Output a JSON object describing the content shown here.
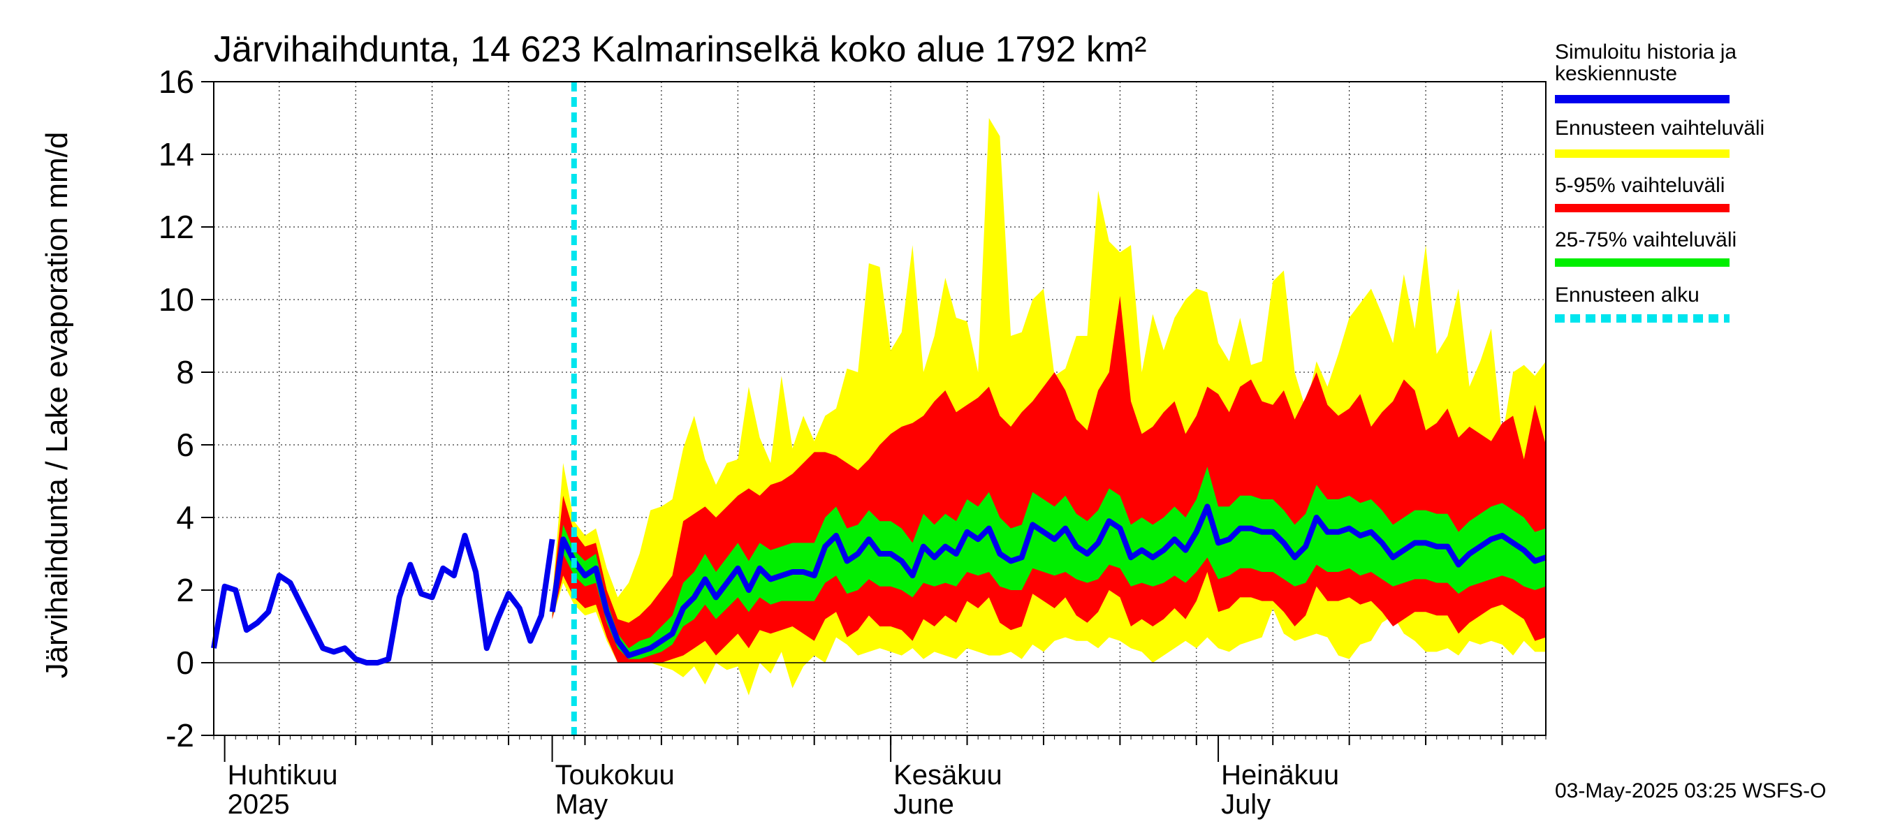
{
  "chart_data": {
    "type": "area",
    "title": "Järvihaihdunta, 14 623 Kalmarinselkä koko alue 1792 km²",
    "ylabel": "Järvihaihdunta / Lake evaporation   mm/d",
    "ylim": [
      -2,
      16
    ],
    "yticks": [
      -2,
      0,
      2,
      4,
      6,
      8,
      10,
      12,
      14,
      16
    ],
    "x_range": [
      "2025-03-31",
      "2025-07-31"
    ],
    "forecast_start": "2025-05-03",
    "months": [
      {
        "date": "2025-04-01",
        "fi": "Huhtikuu",
        "en": "2025"
      },
      {
        "date": "2025-05-01",
        "fi": "Toukokuu",
        "en": "May"
      },
      {
        "date": "2025-06-01",
        "fi": "Kesäkuu",
        "en": "June"
      },
      {
        "date": "2025-07-01",
        "fi": "Heinäkuu",
        "en": "July"
      }
    ],
    "footer": "03-May-2025 03:25 WSFS-O",
    "colors": {
      "history": "#0000ee",
      "yellow": "#ffff00",
      "red": "#ff0000",
      "green": "#00ee00",
      "forecast_start": "#00e5ee"
    },
    "legend": [
      {
        "label": "Simuloitu historia ja keskiennuste",
        "color": "#0000ee",
        "style": "solid"
      },
      {
        "label": "Ennusteen vaihteluväli",
        "color": "#ffff00",
        "style": "solid"
      },
      {
        "label": "5-95% vaihteluväli",
        "color": "#ff0000",
        "style": "solid"
      },
      {
        "label": "25-75% vaihteluväli",
        "color": "#00ee00",
        "style": "solid"
      },
      {
        "label": "Ennusteen alku",
        "color": "#00e5ee",
        "style": "dashed"
      }
    ],
    "history": {
      "start": "2025-03-31",
      "values": [
        0.4,
        2.1,
        2.0,
        0.9,
        1.1,
        1.4,
        2.4,
        2.2,
        1.6,
        1.0,
        0.4,
        0.3,
        0.4,
        0.1,
        0.0,
        0.0,
        0.1,
        1.8,
        2.7,
        1.9,
        1.8,
        2.6,
        2.4,
        3.5,
        2.5,
        0.4,
        1.2,
        1.9,
        1.5,
        0.6,
        1.3,
        3.4
      ]
    },
    "forecast": {
      "start": "2025-05-01",
      "median": [
        1.4,
        3.4,
        2.8,
        2.4,
        2.6,
        1.4,
        0.6,
        0.2,
        0.3,
        0.4,
        0.6,
        0.8,
        1.5,
        1.8,
        2.3,
        1.8,
        2.2,
        2.6,
        2.0,
        2.6,
        2.3,
        2.4,
        2.5,
        2.5,
        2.4,
        3.2,
        3.5,
        2.8,
        3.0,
        3.4,
        3.0,
        3.0,
        2.8,
        2.4,
        3.2,
        2.9,
        3.2,
        3.0,
        3.6,
        3.4,
        3.7,
        3.0,
        2.8,
        2.9,
        3.8,
        3.6,
        3.4,
        3.7,
        3.2,
        3.0,
        3.3,
        3.9,
        3.7,
        2.9,
        3.1,
        2.9,
        3.1,
        3.4,
        3.1,
        3.6,
        4.3,
        3.3,
        3.4,
        3.7,
        3.7,
        3.6,
        3.6,
        3.3,
        2.9,
        3.2,
        4.0,
        3.6,
        3.6,
        3.7,
        3.5,
        3.6,
        3.3,
        2.9,
        3.1,
        3.3,
        3.3,
        3.2,
        3.2,
        2.7,
        3.0,
        3.2,
        3.4,
        3.5,
        3.3,
        3.1,
        2.8,
        2.9
      ],
      "p25": [
        1.3,
        3.0,
        2.4,
        2.1,
        2.2,
        1.1,
        0.4,
        0.1,
        0.1,
        0.2,
        0.3,
        0.5,
        1.0,
        1.2,
        1.6,
        1.2,
        1.5,
        1.8,
        1.4,
        1.8,
        1.6,
        1.7,
        1.7,
        1.7,
        1.7,
        2.2,
        2.4,
        1.9,
        2.0,
        2.3,
        2.1,
        2.1,
        2.0,
        1.8,
        2.2,
        2.1,
        2.2,
        2.1,
        2.5,
        2.4,
        2.5,
        2.1,
        2.0,
        2.0,
        2.6,
        2.5,
        2.4,
        2.5,
        2.3,
        2.2,
        2.3,
        2.7,
        2.6,
        2.1,
        2.2,
        2.1,
        2.2,
        2.4,
        2.2,
        2.5,
        2.9,
        2.3,
        2.4,
        2.6,
        2.6,
        2.5,
        2.5,
        2.3,
        2.1,
        2.2,
        2.7,
        2.5,
        2.5,
        2.6,
        2.4,
        2.5,
        2.3,
        2.1,
        2.2,
        2.3,
        2.3,
        2.2,
        2.2,
        1.9,
        2.1,
        2.2,
        2.3,
        2.4,
        2.3,
        2.1,
        2.0,
        2.1
      ],
      "p75": [
        1.6,
        3.8,
        3.1,
        2.8,
        3.0,
        1.7,
        0.8,
        0.4,
        0.6,
        0.7,
        1.0,
        1.3,
        2.2,
        2.5,
        3.0,
        2.5,
        2.9,
        3.3,
        2.8,
        3.3,
        3.1,
        3.2,
        3.3,
        3.3,
        3.3,
        4.0,
        4.3,
        3.7,
        3.8,
        4.2,
        3.9,
        3.9,
        3.7,
        3.3,
        4.1,
        3.8,
        4.1,
        3.9,
        4.5,
        4.3,
        4.7,
        4.0,
        3.7,
        3.8,
        4.7,
        4.5,
        4.3,
        4.6,
        4.1,
        3.9,
        4.2,
        4.8,
        4.6,
        3.8,
        4.0,
        3.8,
        4.0,
        4.3,
        4.0,
        4.5,
        5.4,
        4.3,
        4.3,
        4.6,
        4.6,
        4.5,
        4.5,
        4.2,
        3.8,
        4.1,
        4.9,
        4.5,
        4.5,
        4.6,
        4.4,
        4.5,
        4.2,
        3.8,
        4.0,
        4.2,
        4.2,
        4.1,
        4.1,
        3.6,
        3.9,
        4.1,
        4.3,
        4.4,
        4.2,
        4.0,
        3.6,
        3.7
      ],
      "p05": [
        1.2,
        2.4,
        1.8,
        1.5,
        1.6,
        0.7,
        0.0,
        0.0,
        0.0,
        0.0,
        0.0,
        0.1,
        0.2,
        0.4,
        0.6,
        0.2,
        0.5,
        0.8,
        0.4,
        0.9,
        0.8,
        0.9,
        1.0,
        0.8,
        0.6,
        1.2,
        1.4,
        0.7,
        0.9,
        1.3,
        1.0,
        1.0,
        0.9,
        0.6,
        1.2,
        1.0,
        1.3,
        1.1,
        1.7,
        1.5,
        1.8,
        1.1,
        0.9,
        1.0,
        1.9,
        1.7,
        1.5,
        1.8,
        1.3,
        1.1,
        1.4,
        2.0,
        1.8,
        1.0,
        1.2,
        1.0,
        1.2,
        1.5,
        1.2,
        1.7,
        2.5,
        1.4,
        1.5,
        1.8,
        1.8,
        1.7,
        1.7,
        1.4,
        1.0,
        1.3,
        2.1,
        1.7,
        1.7,
        1.8,
        1.6,
        1.7,
        1.4,
        1.0,
        1.2,
        1.4,
        1.4,
        1.3,
        1.3,
        0.8,
        1.1,
        1.3,
        1.5,
        1.6,
        1.4,
        1.2,
        0.6,
        0.7
      ],
      "p95": [
        1.8,
        4.6,
        3.6,
        3.2,
        3.3,
        2.0,
        1.2,
        1.1,
        1.3,
        1.6,
        2.0,
        2.4,
        3.9,
        4.1,
        4.3,
        4.0,
        4.3,
        4.6,
        4.8,
        4.6,
        4.9,
        5.0,
        5.2,
        5.5,
        5.8,
        5.8,
        5.7,
        5.5,
        5.3,
        5.6,
        6.0,
        6.3,
        6.5,
        6.6,
        6.8,
        7.2,
        7.5,
        6.9,
        7.1,
        7.3,
        7.6,
        6.8,
        6.5,
        6.9,
        7.2,
        7.6,
        8.0,
        7.5,
        6.7,
        6.4,
        7.5,
        8.0,
        10.1,
        7.2,
        6.3,
        6.5,
        6.9,
        7.2,
        6.3,
        6.8,
        7.6,
        7.4,
        6.9,
        7.6,
        7.8,
        7.2,
        7.1,
        7.5,
        6.7,
        7.3,
        8.0,
        7.1,
        6.8,
        7.0,
        7.4,
        6.5,
        6.9,
        7.2,
        7.8,
        7.5,
        6.4,
        6.6,
        7.0,
        6.2,
        6.5,
        6.3,
        6.1,
        6.6,
        6.8,
        5.6,
        7.1,
        6.0
      ],
      "ymin": [
        1.2,
        2.2,
        1.6,
        1.3,
        1.4,
        0.6,
        0.0,
        0.0,
        0.0,
        0.0,
        -0.1,
        -0.2,
        -0.4,
        -0.1,
        -0.6,
        0.0,
        -0.2,
        -0.1,
        -0.9,
        0.0,
        -0.3,
        0.3,
        -0.7,
        -0.1,
        0.2,
        0.0,
        0.7,
        0.5,
        0.2,
        0.3,
        0.4,
        0.3,
        0.2,
        0.4,
        0.1,
        0.3,
        0.2,
        0.1,
        0.4,
        0.3,
        0.2,
        0.2,
        0.3,
        0.1,
        0.5,
        0.3,
        0.6,
        0.7,
        0.6,
        0.6,
        0.4,
        0.7,
        0.6,
        0.4,
        0.3,
        0.0,
        0.2,
        0.4,
        0.6,
        0.4,
        0.7,
        0.4,
        0.3,
        0.5,
        0.6,
        0.7,
        1.5,
        0.8,
        0.6,
        0.7,
        0.8,
        0.7,
        0.2,
        0.1,
        0.5,
        0.6,
        1.1,
        1.3,
        0.8,
        0.6,
        0.3,
        0.3,
        0.4,
        0.2,
        0.6,
        0.5,
        0.6,
        0.5,
        0.2,
        0.6,
        0.3,
        0.3
      ],
      "ymax": [
        1.8,
        5.5,
        3.9,
        3.5,
        3.7,
        2.6,
        1.8,
        2.2,
        3.0,
        4.2,
        4.3,
        4.5,
        5.9,
        6.8,
        5.6,
        4.9,
        5.5,
        5.6,
        7.6,
        6.2,
        5.5,
        7.9,
        5.9,
        6.8,
        6.1,
        6.8,
        7.0,
        8.1,
        8.0,
        11.0,
        10.9,
        8.6,
        9.1,
        11.5,
        8.0,
        9.0,
        10.6,
        9.5,
        9.4,
        8.0,
        15.0,
        14.5,
        9.0,
        9.1,
        10.0,
        10.3,
        7.9,
        8.1,
        9.0,
        9.0,
        13.0,
        11.6,
        11.3,
        11.5,
        8.0,
        9.6,
        8.6,
        9.5,
        10.0,
        10.3,
        10.2,
        8.8,
        8.3,
        9.5,
        8.2,
        8.3,
        10.5,
        10.8,
        8.0,
        7.0,
        8.3,
        7.6,
        8.5,
        9.5,
        9.9,
        10.3,
        9.6,
        8.8,
        10.7,
        9.2,
        11.5,
        8.5,
        9.0,
        10.3,
        7.6,
        8.3,
        9.2,
        6.2,
        8.0,
        8.2,
        7.9,
        8.3
      ]
    }
  }
}
